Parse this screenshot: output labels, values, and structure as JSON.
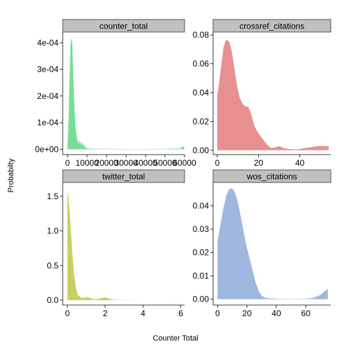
{
  "chart_data": {
    "type": "area",
    "xlabel": "Counter Total",
    "ylabel": "Probabilty",
    "panels": [
      {
        "name": "counter_total",
        "color": "#77dd99",
        "xlim": [
          -2500,
          60000
        ],
        "ylim": [
          -2e-05,
          0.00044
        ],
        "xticks": [
          0,
          10000,
          20000,
          30000,
          40000,
          50000,
          60000
        ],
        "xtick_labels": [
          "0",
          "10000",
          "20000",
          "30000",
          "40000",
          "50000",
          "60000"
        ],
        "yticks": [
          0,
          0.0001,
          0.0002,
          0.0003,
          0.0004
        ],
        "ytick_labels": [
          "0e+00",
          "1e-04",
          "2e-04",
          "3e-04",
          "4e-04"
        ],
        "x": [
          0,
          500,
          1000,
          1500,
          2000,
          2400,
          2800,
          3300,
          3800,
          4300,
          4800,
          5300,
          5800,
          6300,
          7000,
          7500,
          8000,
          8500,
          9000,
          10000,
          12000,
          20000,
          30000,
          40000,
          50000,
          58000,
          59000,
          59500,
          60000
        ],
        "y": [
          2e-05,
          0.0001,
          0.00026,
          0.00039,
          0.000418,
          0.0004,
          0.00031,
          0.0002,
          0.00012,
          7e-05,
          4e-05,
          3e-05,
          2e-05,
          3.5e-05,
          1.5e-05,
          2.8e-05,
          1.2e-05,
          1.8e-05,
          8e-06,
          4e-06,
          2e-06,
          1.5e-06,
          1e-06,
          1e-06,
          1.5e-06,
          3e-06,
          1.2e-05,
          8e-06,
          3e-06
        ]
      },
      {
        "name": "crossref_citations",
        "color": "#e89090",
        "xlim": [
          -2,
          55
        ],
        "ylim": [
          -0.003,
          0.082
        ],
        "xticks": [
          0,
          20,
          40
        ],
        "xtick_labels": [
          "0",
          "20",
          "40"
        ],
        "yticks": [
          0,
          0.02,
          0.04,
          0.06,
          0.08
        ],
        "ytick_labels": [
          "0.00",
          "0.02",
          "0.04",
          "0.06",
          "0.08"
        ],
        "x": [
          0,
          1,
          2,
          3,
          4,
          5,
          6,
          7,
          8,
          9,
          10,
          11,
          12,
          13,
          14,
          15,
          16,
          17,
          18,
          19,
          20,
          22,
          24,
          26,
          28,
          30,
          32,
          35,
          38,
          40,
          42,
          45,
          48,
          50,
          52,
          54
        ],
        "y": [
          0.038,
          0.048,
          0.06,
          0.071,
          0.076,
          0.0765,
          0.0745,
          0.069,
          0.06,
          0.05,
          0.042,
          0.036,
          0.033,
          0.031,
          0.0305,
          0.03,
          0.027,
          0.022,
          0.017,
          0.014,
          0.0115,
          0.008,
          0.004,
          0.0015,
          0.002,
          0.003,
          0.0015,
          0.0008,
          0.0006,
          0.0008,
          0.0015,
          0.002,
          0.0028,
          0.003,
          0.003,
          0.0028
        ]
      },
      {
        "name": "twitter_total",
        "color": "#c8d060",
        "xlim": [
          -0.25,
          6.2
        ],
        "ylim": [
          -0.07,
          1.7
        ],
        "xticks": [
          0,
          2,
          4,
          6
        ],
        "xtick_labels": [
          "0",
          "2",
          "4",
          "6"
        ],
        "yticks": [
          0,
          0.5,
          1.0,
          1.5
        ],
        "ytick_labels": [
          "0.0",
          "0.5",
          "1.0",
          "1.5"
        ],
        "x": [
          0,
          0.05,
          0.15,
          0.25,
          0.35,
          0.45,
          0.55,
          0.7,
          0.85,
          1.0,
          1.15,
          1.3,
          1.5,
          1.7,
          1.85,
          2.0,
          2.15,
          2.3,
          2.5,
          3.0,
          3.5,
          4.0,
          5.0,
          5.8,
          6.0
        ],
        "y": [
          1.58,
          1.5,
          1.15,
          0.72,
          0.38,
          0.18,
          0.08,
          0.04,
          0.03,
          0.045,
          0.04,
          0.02,
          0.01,
          0.02,
          0.035,
          0.04,
          0.03,
          0.015,
          0.006,
          0.003,
          0.002,
          0.001,
          0.001,
          0.002,
          0.003
        ]
      },
      {
        "name": "wos_citations",
        "color": "#a0b8e0",
        "xlim": [
          -3,
          77
        ],
        "ylim": [
          -0.0025,
          0.05
        ],
        "xticks": [
          0,
          20,
          40,
          60
        ],
        "xtick_labels": [
          "0",
          "20",
          "40",
          "60"
        ],
        "yticks": [
          0,
          0.01,
          0.02,
          0.03,
          0.04
        ],
        "ytick_labels": [
          "0.00",
          "0.01",
          "0.02",
          "0.03",
          "0.04"
        ],
        "x": [
          0,
          2,
          4,
          6,
          8,
          10,
          12,
          14,
          16,
          18,
          20,
          22,
          24,
          26,
          28,
          30,
          32,
          35,
          40,
          50,
          60,
          65,
          70,
          72,
          74,
          75
        ],
        "y": [
          0.025,
          0.032,
          0.039,
          0.0445,
          0.0472,
          0.0475,
          0.0455,
          0.041,
          0.035,
          0.028,
          0.022,
          0.017,
          0.012,
          0.007,
          0.0035,
          0.0015,
          0.0008,
          0.0004,
          0.0002,
          0.0001,
          0.0002,
          0.0006,
          0.0018,
          0.003,
          0.004,
          0.0045
        ]
      }
    ]
  }
}
